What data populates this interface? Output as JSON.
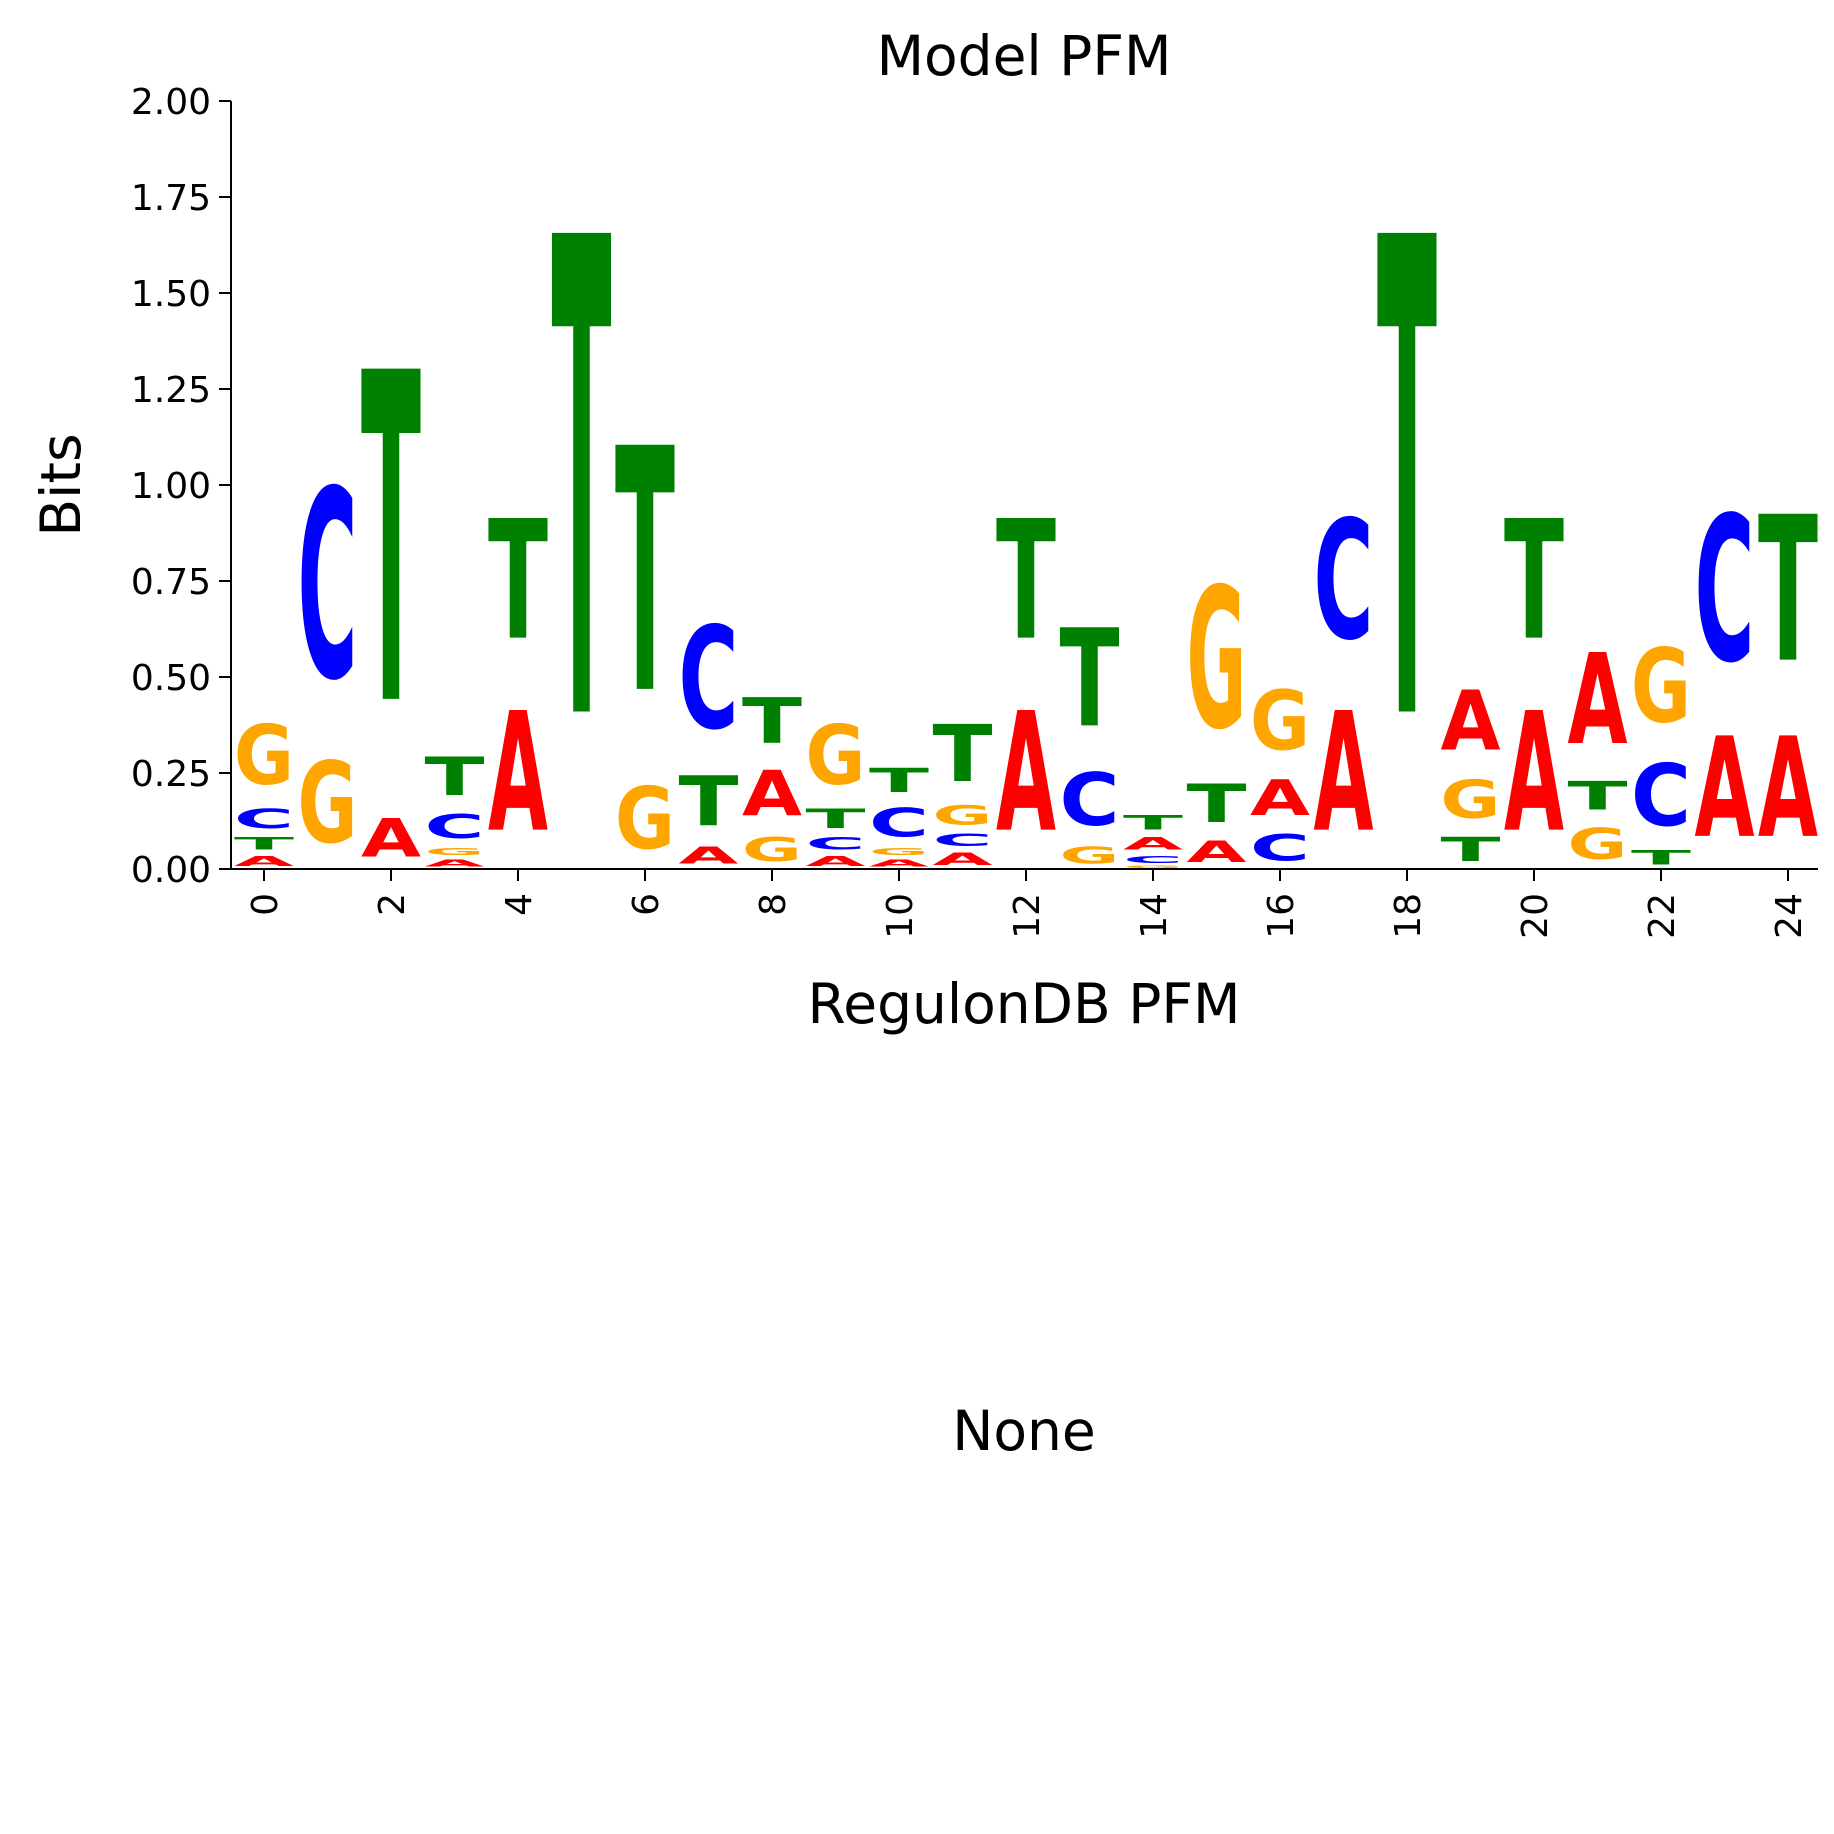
{
  "chart_data": {
    "type": "sequence-logo",
    "title": "Model PFM",
    "xlabel": "RegulonDB PFM",
    "ylabel": "Bits",
    "ylim": [
      0,
      2.0
    ],
    "yticks": [
      "0.00",
      "0.25",
      "0.50",
      "0.75",
      "1.00",
      "1.25",
      "1.50",
      "1.75",
      "2.00"
    ],
    "xticks": [
      "0",
      "2",
      "4",
      "6",
      "8",
      "10",
      "12",
      "14",
      "16",
      "18",
      "20",
      "22",
      "24"
    ],
    "letter_colors": {
      "A": "#ff0000",
      "C": "#0000ff",
      "G": "#ffa500",
      "T": "#008000"
    },
    "positions": [
      [
        [
          "A",
          0.04
        ],
        [
          "T",
          0.05
        ],
        [
          "C",
          0.08
        ],
        [
          "G",
          0.25
        ]
      ],
      [
        [
          "G",
          0.34
        ],
        [
          "C",
          0.79
        ]
      ],
      [
        [
          "A",
          0.16
        ],
        [
          "T",
          1.38
        ]
      ],
      [
        [
          "A",
          0.03
        ],
        [
          "G",
          0.03
        ],
        [
          "C",
          0.1
        ],
        [
          "T",
          0.16
        ]
      ],
      [
        [
          "A",
          0.5
        ],
        [
          "T",
          0.5
        ]
      ],
      [
        [
          "T",
          2.0
        ]
      ],
      [
        [
          "G",
          0.26
        ],
        [
          "T",
          1.02
        ]
      ],
      [
        [
          "A",
          0.07
        ],
        [
          "T",
          0.21
        ],
        [
          "C",
          0.43
        ]
      ],
      [
        [
          "G",
          0.1
        ],
        [
          "A",
          0.19
        ],
        [
          "T",
          0.19
        ]
      ],
      [
        [
          "A",
          0.04
        ],
        [
          "C",
          0.05
        ],
        [
          "T",
          0.08
        ],
        [
          "G",
          0.25
        ]
      ],
      [
        [
          "A",
          0.03
        ],
        [
          "G",
          0.03
        ],
        [
          "C",
          0.12
        ],
        [
          "T",
          0.1
        ]
      ],
      [
        [
          "A",
          0.05
        ],
        [
          "C",
          0.05
        ],
        [
          "G",
          0.08
        ],
        [
          "T",
          0.24
        ]
      ],
      [
        [
          "A",
          0.5
        ],
        [
          "T",
          0.5
        ]
      ],
      [
        [
          "G",
          0.07
        ],
        [
          "C",
          0.22
        ],
        [
          "T",
          0.41
        ]
      ],
      [
        [
          "G",
          0.01
        ],
        [
          "C",
          0.03
        ],
        [
          "A",
          0.05
        ],
        [
          "T",
          0.06
        ]
      ],
      [
        [
          "A",
          0.09
        ],
        [
          "T",
          0.16
        ],
        [
          "G",
          0.59
        ]
      ],
      [
        [
          "C",
          0.11
        ],
        [
          "A",
          0.15
        ],
        [
          "G",
          0.25
        ]
      ],
      [
        [
          "A",
          0.5
        ],
        [
          "C",
          0.5
        ]
      ],
      [
        [
          "T",
          2.0
        ]
      ],
      [
        [
          "T",
          0.1
        ],
        [
          "G",
          0.16
        ],
        [
          "A",
          0.25
        ]
      ],
      [
        [
          "A",
          0.5
        ],
        [
          "T",
          0.5
        ]
      ],
      [
        [
          "G",
          0.13
        ],
        [
          "T",
          0.12
        ],
        [
          "A",
          0.38
        ]
      ],
      [
        [
          "T",
          0.06
        ],
        [
          "C",
          0.26
        ],
        [
          "G",
          0.31
        ]
      ],
      [
        [
          "A",
          0.42
        ],
        [
          "C",
          0.61
        ]
      ],
      [
        [
          "A",
          0.42
        ],
        [
          "T",
          0.61
        ]
      ]
    ]
  },
  "lower_panel": {
    "title": "None"
  }
}
